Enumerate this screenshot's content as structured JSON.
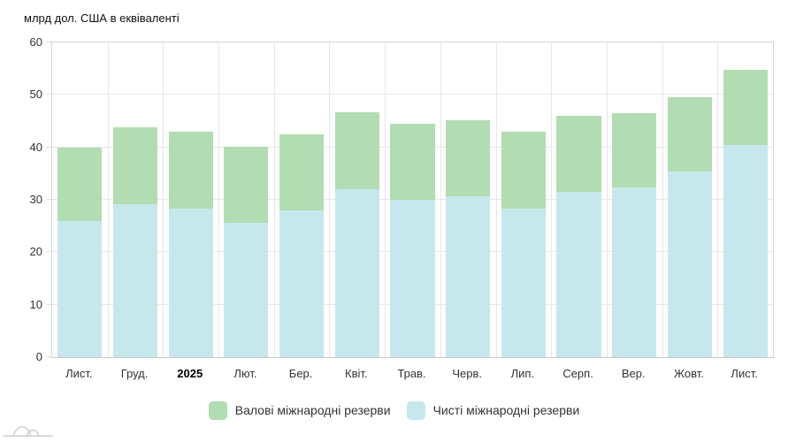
{
  "title": "млрд дол. США в еквіваленті",
  "colors": {
    "gross": "#b2dcb2",
    "net": "#c6e8ec",
    "grid": "#e7e7e7",
    "plot_border": "#d6d6d6",
    "axis_line": "#c9c9c9",
    "text": "#333333",
    "logo": "#cfcfcf"
  },
  "chart_data": {
    "type": "bar",
    "variant": "overlay-stacked-columns",
    "title": "млрд дол. США в еквіваленті",
    "categories": [
      "Лист.",
      "Груд.",
      "2025",
      "Лют.",
      "Бер.",
      "Квіт.",
      "Трав.",
      "Черв.",
      "Лип.",
      "Серп.",
      "Вер.",
      "Жовт.",
      "Лист."
    ],
    "bold_category": "2025",
    "series": [
      {
        "name": "Валові міжнародні резерви",
        "color": "#b2dcb2",
        "values": [
          39.9,
          43.8,
          43.0,
          40.1,
          42.4,
          46.7,
          44.5,
          45.1,
          43.0,
          46.0,
          46.6,
          49.5,
          54.8
        ]
      },
      {
        "name": "Чисті міжнародні резерви",
        "color": "#c6e8ec",
        "values": [
          25.9,
          29.1,
          28.4,
          25.6,
          27.9,
          32.0,
          30.0,
          30.7,
          28.4,
          31.5,
          32.3,
          35.4,
          40.5
        ]
      }
    ],
    "ylim": [
      0,
      60
    ],
    "yticks": [
      0,
      10,
      20,
      30,
      40,
      50,
      60
    ],
    "xlabel": "",
    "ylabel": "млрд дол. США в еквіваленті",
    "grid": true,
    "legend_position": "bottom-center"
  },
  "legend": {
    "items": [
      {
        "label": "Валові міжнародні резерви",
        "color": "#b2dcb2"
      },
      {
        "label": "Чисті міжнародні резерви",
        "color": "#c6e8ec"
      }
    ]
  },
  "logo_name": "minfin-watermark-logo"
}
